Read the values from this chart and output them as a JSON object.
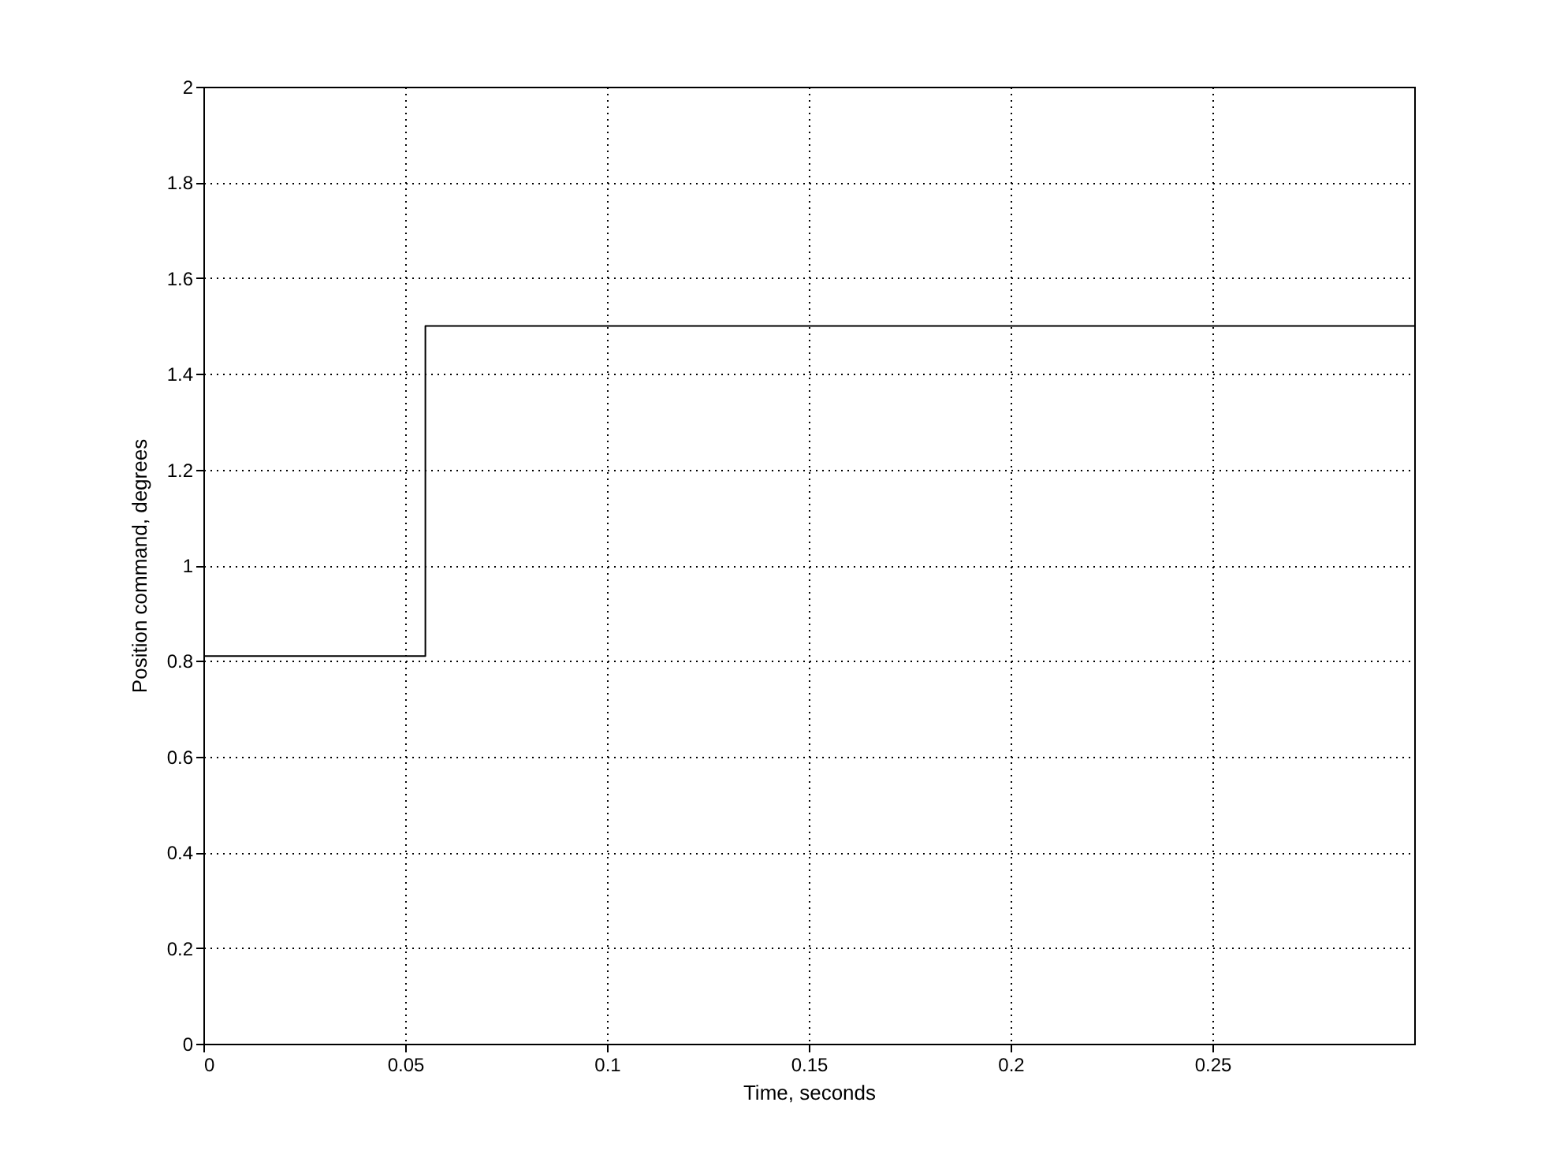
{
  "chart_data": {
    "type": "step",
    "xlabel": "Time, seconds",
    "ylabel": "Position command, degrees",
    "x": [
      0,
      0.055,
      0.3
    ],
    "values": [
      0.81,
      1.5,
      1.5
    ],
    "color": "#000000",
    "line_style": "solid",
    "xlim": [
      0,
      0.3
    ],
    "xticks": [
      0,
      0.05,
      0.1,
      0.15,
      0.2,
      0.25
    ],
    "ylim": [
      0,
      2
    ],
    "yticks": [
      0,
      0.2,
      0.4,
      0.6,
      0.8,
      1,
      1.2,
      1.4,
      1.6,
      1.8,
      2
    ],
    "grid": true
  }
}
